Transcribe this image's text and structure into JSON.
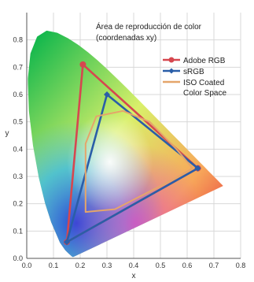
{
  "chart_data": {
    "type": "line",
    "title_lines": [
      "Área de reproducción de color",
      "(coordenadas xy)"
    ],
    "xlabel": "x",
    "ylabel": "y",
    "xlim": [
      0,
      0.8
    ],
    "ylim": [
      0,
      0.9
    ],
    "x_ticks": [
      "0.0",
      "0.1",
      "0.2",
      "0.3",
      "0.4",
      "0.5",
      "0.6",
      "0.7",
      "0.8"
    ],
    "y_ticks": [
      "0.0",
      "0.1",
      "0.2",
      "0.3",
      "0.4",
      "0.5",
      "0.6",
      "0.7",
      "0.8"
    ],
    "grid": true,
    "legend_position": "top-right",
    "legend": [
      "Adobe RGB",
      "sRGB",
      "ISO Coated",
      "Color Space"
    ],
    "spectral_locus": [
      [
        0.1741,
        0.005
      ],
      [
        0.174,
        0.005
      ],
      [
        0.1738,
        0.0049
      ],
      [
        0.1736,
        0.0049
      ],
      [
        0.1733,
        0.0048
      ],
      [
        0.1726,
        0.0048
      ],
      [
        0.1714,
        0.0051
      ],
      [
        0.1689,
        0.0069
      ],
      [
        0.1644,
        0.0109
      ],
      [
        0.1566,
        0.0177
      ],
      [
        0.144,
        0.0297
      ],
      [
        0.1241,
        0.0578
      ],
      [
        0.0913,
        0.1327
      ],
      [
        0.0687,
        0.2007
      ],
      [
        0.0454,
        0.295
      ],
      [
        0.0235,
        0.4127
      ],
      [
        0.0082,
        0.5384
      ],
      [
        0.0039,
        0.6548
      ],
      [
        0.0139,
        0.7502
      ],
      [
        0.0389,
        0.812
      ],
      [
        0.0743,
        0.8338
      ],
      [
        0.1142,
        0.8262
      ],
      [
        0.1547,
        0.8059
      ],
      [
        0.1929,
        0.7816
      ],
      [
        0.2296,
        0.7543
      ],
      [
        0.2658,
        0.7243
      ],
      [
        0.3016,
        0.6923
      ],
      [
        0.3373,
        0.6589
      ],
      [
        0.3731,
        0.6245
      ],
      [
        0.4087,
        0.5896
      ],
      [
        0.4441,
        0.5547
      ],
      [
        0.4788,
        0.5202
      ],
      [
        0.5125,
        0.4866
      ],
      [
        0.5448,
        0.4544
      ],
      [
        0.5752,
        0.4242
      ],
      [
        0.6029,
        0.3965
      ],
      [
        0.627,
        0.3725
      ],
      [
        0.6482,
        0.3514
      ],
      [
        0.6658,
        0.334
      ],
      [
        0.6801,
        0.3197
      ],
      [
        0.6915,
        0.3083
      ],
      [
        0.7006,
        0.2993
      ],
      [
        0.7079,
        0.292
      ],
      [
        0.714,
        0.2859
      ],
      [
        0.719,
        0.2809
      ],
      [
        0.723,
        0.277
      ],
      [
        0.726,
        0.274
      ],
      [
        0.7283,
        0.2717
      ],
      [
        0.73,
        0.27
      ],
      [
        0.7311,
        0.2689
      ],
      [
        0.732,
        0.268
      ],
      [
        0.7327,
        0.2673
      ],
      [
        0.7334,
        0.2666
      ],
      [
        0.734,
        0.266
      ],
      [
        0.7344,
        0.2656
      ],
      [
        0.7346,
        0.2654
      ],
      [
        0.7347,
        0.2653
      ]
    ],
    "series": [
      {
        "name": "Adobe RGB",
        "color": "#d6474f",
        "marker": "circle",
        "points": [
          [
            0.64,
            0.33
          ],
          [
            0.21,
            0.71
          ],
          [
            0.15,
            0.06
          ]
        ]
      },
      {
        "name": "sRGB",
        "color": "#2a5ea8",
        "marker": "diamond",
        "points": [
          [
            0.64,
            0.33
          ],
          [
            0.3,
            0.6
          ],
          [
            0.15,
            0.06
          ]
        ]
      },
      {
        "name": "ISO Coated Color Space",
        "color": "#e5a56a",
        "marker": "none",
        "points": [
          [
            0.62,
            0.33
          ],
          [
            0.56,
            0.4
          ],
          [
            0.46,
            0.5
          ],
          [
            0.36,
            0.54
          ],
          [
            0.26,
            0.52
          ],
          [
            0.22,
            0.42
          ],
          [
            0.22,
            0.29
          ],
          [
            0.22,
            0.17
          ],
          [
            0.33,
            0.18
          ],
          [
            0.45,
            0.24
          ],
          [
            0.55,
            0.29
          ]
        ]
      }
    ]
  }
}
